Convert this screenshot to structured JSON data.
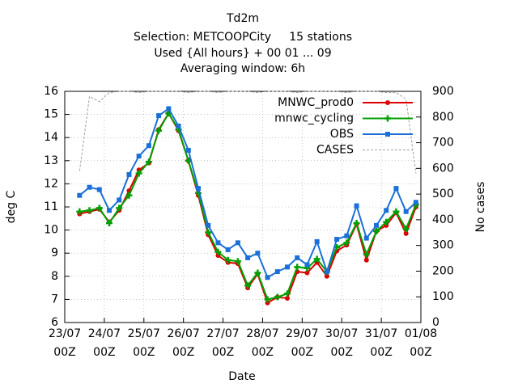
{
  "chart_data": {
    "type": "line",
    "title": [
      "Td2m",
      "Selection: METCOOPCity     15 stations",
      "Used {All hours} + 00 01 ... 09",
      "Averaging window:  6h"
    ],
    "xlabel": "Date",
    "ylabel": "deg C",
    "y2label": "No cases",
    "x": [
      "23/07 09Z",
      "23/07 15Z",
      "23/07 21Z",
      "24/07 03Z",
      "24/07 09Z",
      "24/07 15Z",
      "24/07 21Z",
      "25/07 03Z",
      "25/07 09Z",
      "25/07 15Z",
      "25/07 21Z",
      "26/07 03Z",
      "26/07 09Z",
      "26/07 15Z",
      "26/07 21Z",
      "27/07 03Z",
      "27/07 09Z",
      "27/07 15Z",
      "27/07 21Z",
      "28/07 03Z",
      "28/07 09Z",
      "28/07 15Z",
      "28/07 21Z",
      "29/07 03Z",
      "29/07 09Z",
      "29/07 15Z",
      "29/07 21Z",
      "30/07 03Z",
      "30/07 09Z",
      "30/07 15Z",
      "30/07 21Z",
      "31/07 03Z",
      "31/07 09Z",
      "31/07 15Z",
      "31/07 21Z"
    ],
    "series": [
      {
        "name": "MNWC_prod0",
        "color": "#dd0000",
        "marker": "circle",
        "values": [
          10.7,
          10.8,
          10.9,
          10.35,
          10.85,
          11.7,
          12.6,
          12.9,
          14.35,
          15.05,
          14.3,
          13.0,
          11.5,
          9.8,
          8.9,
          8.6,
          8.55,
          7.5,
          8.1,
          6.85,
          7.1,
          7.05,
          8.2,
          8.15,
          8.6,
          8.0,
          9.1,
          9.35,
          10.25,
          8.7,
          9.95,
          10.2,
          10.75,
          9.85,
          11.0
        ]
      },
      {
        "name": "mnwc_cycling",
        "color": "#00a000",
        "marker": "plus",
        "values": [
          10.8,
          10.85,
          10.95,
          10.3,
          10.95,
          11.5,
          12.45,
          12.95,
          14.3,
          15.05,
          14.35,
          13.0,
          11.6,
          9.9,
          9.05,
          8.7,
          8.65,
          7.6,
          8.15,
          7.0,
          7.1,
          7.25,
          8.4,
          8.35,
          8.75,
          8.2,
          9.25,
          9.45,
          10.3,
          8.95,
          9.95,
          10.35,
          10.8,
          10.05,
          11.1
        ]
      },
      {
        "name": "OBS",
        "color": "#1a70d8",
        "marker": "square",
        "values": [
          11.5,
          11.85,
          11.75,
          10.85,
          11.3,
          12.4,
          13.2,
          13.65,
          14.95,
          15.25,
          14.5,
          13.45,
          11.8,
          10.2,
          9.45,
          9.15,
          9.45,
          8.8,
          9.0,
          7.95,
          8.2,
          8.4,
          8.8,
          8.5,
          9.5,
          8.2,
          9.6,
          9.75,
          11.05,
          9.65,
          10.2,
          10.85,
          11.8,
          10.8,
          11.2
        ]
      },
      {
        "name": "CASES",
        "color": "#a0a0a0",
        "axis": "y2",
        "dash": true,
        "values": [
          590,
          880,
          860,
          895,
          900,
          900,
          895,
          900,
          900,
          900,
          900,
          895,
          900,
          900,
          895,
          900,
          900,
          900,
          895,
          900,
          900,
          900,
          895,
          900,
          900,
          900,
          900,
          895,
          900,
          900,
          900,
          895,
          895,
          870,
          580
        ]
      }
    ],
    "xlim": [
      "23/07 00Z",
      "01/08 00Z"
    ],
    "xticks": [
      {
        "value": "23/07 00Z",
        "label": "23/07\n00Z"
      },
      {
        "value": "24/07 00Z",
        "label": "24/07\n00Z"
      },
      {
        "value": "25/07 00Z",
        "label": "25/07\n00Z"
      },
      {
        "value": "26/07 00Z",
        "label": "26/07\n00Z"
      },
      {
        "value": "27/07 00Z",
        "label": "27/07\n00Z"
      },
      {
        "value": "28/07 00Z",
        "label": "28/07\n00Z"
      },
      {
        "value": "29/07 00Z",
        "label": "29/07\n00Z"
      },
      {
        "value": "30/07 00Z",
        "label": "30/07\n00Z"
      },
      {
        "value": "31/07 00Z",
        "label": "31/07\n00Z"
      },
      {
        "value": "01/08 00Z",
        "label": "01/08\n00Z"
      }
    ],
    "ylim": [
      6,
      16
    ],
    "yticks": [
      6,
      7,
      8,
      9,
      10,
      11,
      12,
      13,
      14,
      15,
      16
    ],
    "y2lim": [
      0,
      900
    ],
    "y2ticks": [
      0,
      100,
      200,
      300,
      400,
      500,
      600,
      700,
      800,
      900
    ],
    "grid": true,
    "legend": "top right"
  }
}
